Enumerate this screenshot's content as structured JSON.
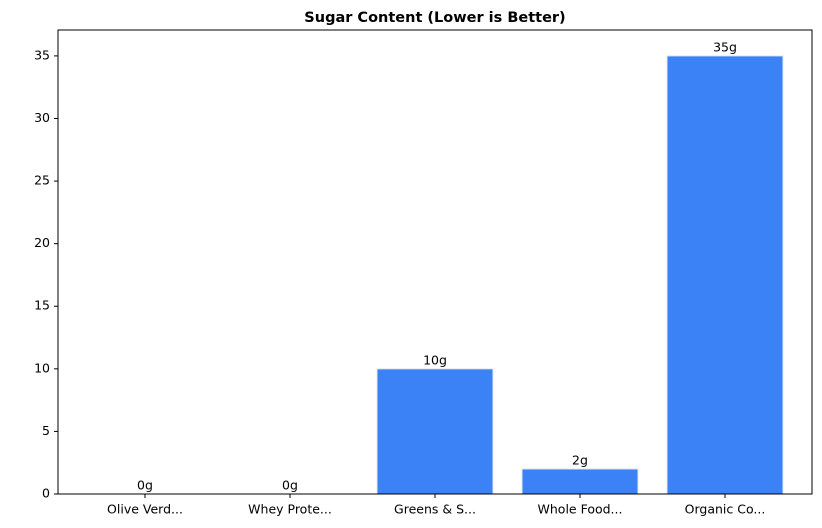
{
  "chart_data": {
    "type": "bar",
    "title": "Sugar Content (Lower is Better)",
    "categories": [
      "Olive Verd...",
      "Whey Prote...",
      "Greens & S...",
      "Whole Food...",
      "Organic Co..."
    ],
    "values": [
      0,
      0,
      10,
      2,
      35
    ],
    "value_labels": [
      "0g",
      "0g",
      "10g",
      "2g",
      "35g"
    ],
    "color": "#3b82f6",
    "ylim": [
      0,
      36.75
    ],
    "yticks": [
      0,
      5,
      10,
      15,
      20,
      25,
      30,
      35
    ],
    "grid": false
  }
}
